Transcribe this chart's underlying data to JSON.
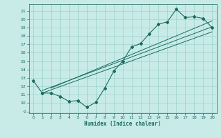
{
  "xlabel": "Humidex (Indice chaleur)",
  "bg_color": "#c8ebe8",
  "line_color": "#1a6b5f",
  "grid_color": "#a0d4ce",
  "xlim": [
    -0.5,
    20.5
  ],
  "ylim": [
    8.8,
    21.8
  ],
  "xticks": [
    0,
    1,
    2,
    3,
    4,
    5,
    6,
    7,
    8,
    9,
    10,
    11,
    12,
    13,
    14,
    15,
    16,
    17,
    18,
    19,
    20
  ],
  "yticks": [
    9,
    10,
    11,
    12,
    13,
    14,
    15,
    16,
    17,
    18,
    19,
    20,
    21
  ],
  "curve_x": [
    0,
    1,
    2,
    3,
    4,
    5,
    6,
    7,
    8,
    9,
    10,
    11,
    12,
    13,
    14,
    15,
    16,
    17,
    18,
    19,
    20
  ],
  "curve_y": [
    12.7,
    11.2,
    11.2,
    10.8,
    10.2,
    10.3,
    9.5,
    10.1,
    11.8,
    13.8,
    15.0,
    16.7,
    17.1,
    18.3,
    19.4,
    19.7,
    21.2,
    20.2,
    20.3,
    20.1,
    19.0
  ],
  "line1_x": [
    1,
    20
  ],
  "line1_y": [
    11.2,
    18.5
  ],
  "line2_x": [
    1,
    20
  ],
  "line2_y": [
    11.5,
    19.1
  ],
  "line3_x": [
    2,
    20
  ],
  "line3_y": [
    11.8,
    19.8
  ]
}
